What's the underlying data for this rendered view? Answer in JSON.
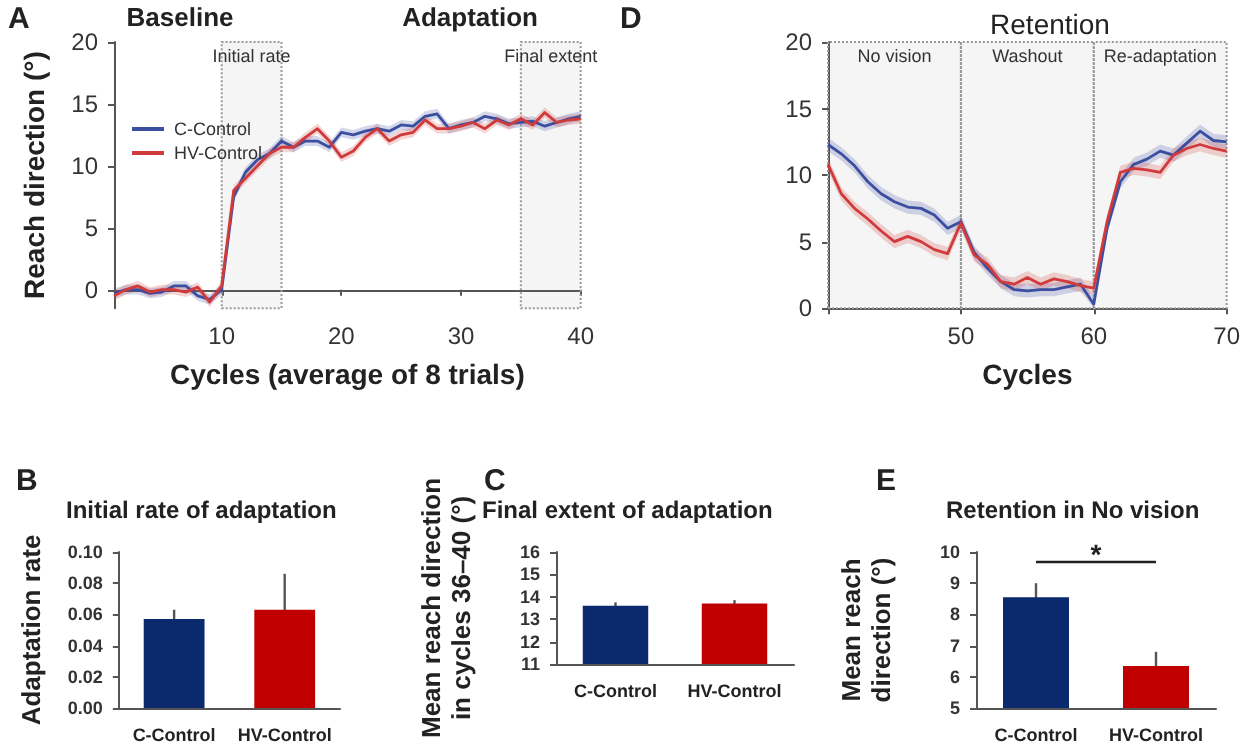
{
  "chart_data": [
    {
      "type": "line",
      "xlabel": "Cycles (average of 8 trials)",
      "ylabel": "Reach direction (°)",
      "annotations": [
        "A",
        "Baseline",
        "Adaptation"
      ],
      "x": [
        1,
        2,
        3,
        4,
        5,
        6,
        7,
        8,
        9,
        10,
        11,
        12,
        13,
        14,
        15,
        16,
        17,
        18,
        19,
        20,
        21,
        22,
        23,
        24,
        25,
        26,
        27,
        28,
        29,
        30,
        31,
        32,
        33,
        34,
        35,
        36,
        37,
        38,
        39,
        40
      ],
      "xlim": [
        1,
        40
      ],
      "xticks": [
        {
          "value": 1,
          "label": null
        },
        10,
        20,
        30,
        40
      ],
      "ylim": [
        -1.5,
        20
      ],
      "yticks": [
        0,
        5,
        10,
        15,
        20
      ],
      "legend": "left",
      "bands": [
        {
          "axis": "x",
          "from": 10,
          "to": 15,
          "label": "Initial rate"
        },
        {
          "axis": "x",
          "from": 35,
          "to": 40,
          "label": "Final extent"
        }
      ],
      "series": [
        {
          "name": "C-Control",
          "color": "#3b4ea0",
          "values": [
            -0.3,
            0,
            0,
            -0.3,
            -0.2,
            0.3,
            0.3,
            -0.5,
            -0.8,
            0,
            7.5,
            9.5,
            10.5,
            11,
            12,
            11.5,
            12,
            12,
            11.5,
            12.7,
            12.5,
            12.8,
            13,
            12.8,
            13.3,
            13.2,
            14,
            14.2,
            13,
            13.3,
            13.5,
            14,
            13.8,
            13.4,
            13.5,
            13.6,
            13.2,
            13.5,
            13.8,
            14
          ],
          "lower": [
            -0.7,
            -0.4,
            -0.4,
            -0.7,
            -0.6,
            -0.1,
            -0.1,
            -0.9,
            -1.2,
            -0.4,
            7.1,
            9.1,
            10.1,
            10.6,
            11.6,
            11.1,
            11.6,
            11.6,
            11.1,
            12.3,
            12.1,
            12.4,
            12.6,
            12.4,
            12.9,
            12.8,
            13.6,
            13.8,
            12.6,
            12.9,
            13.1,
            13.6,
            13.4,
            13,
            13.1,
            13.2,
            12.8,
            13.1,
            13.4,
            13.6
          ],
          "upper": [
            0.1,
            0.4,
            0.4,
            0.1,
            0.2,
            0.7,
            0.7,
            -0.1,
            -0.4,
            0.4,
            7.9,
            9.9,
            10.9,
            11.4,
            12.4,
            11.9,
            12.4,
            12.4,
            11.9,
            13.1,
            12.9,
            13.2,
            13.4,
            13.2,
            13.7,
            13.6,
            14.4,
            14.6,
            13.4,
            13.7,
            13.9,
            14.4,
            14.2,
            13.8,
            13.9,
            14,
            13.6,
            13.9,
            14.2,
            14.4
          ]
        },
        {
          "name": "HV-Control",
          "color": "#d03a3a",
          "values": [
            -0.5,
            0,
            0.3,
            -0.2,
            0,
            0,
            -0.2,
            0.2,
            -1,
            0.3,
            8,
            9,
            10,
            11,
            11.5,
            11.5,
            12.3,
            13,
            12,
            10.7,
            11.2,
            12.3,
            13,
            12,
            12.5,
            12.7,
            13.7,
            13,
            13,
            13.2,
            13.5,
            13,
            13.7,
            13.3,
            13.8,
            13.3,
            14.3,
            13.5,
            13.7,
            13.8
          ],
          "lower": [
            -0.9,
            -0.4,
            -0.1,
            -0.6,
            -0.4,
            -0.4,
            -0.6,
            -0.2,
            -1.4,
            -0.1,
            7.6,
            8.6,
            9.6,
            10.6,
            11.1,
            11.1,
            11.9,
            12.6,
            11.6,
            10.3,
            10.8,
            11.9,
            12.6,
            11.6,
            12.1,
            12.3,
            13.3,
            12.6,
            12.6,
            12.8,
            13.1,
            12.6,
            13.3,
            12.9,
            13.4,
            12.9,
            13.9,
            13.1,
            13.3,
            13.4
          ],
          "upper": [
            -0.1,
            0.4,
            0.7,
            0.2,
            0.4,
            0.4,
            0.2,
            0.6,
            -0.6,
            0.7,
            8.4,
            9.4,
            10.4,
            11.4,
            11.9,
            11.9,
            12.7,
            13.4,
            12.4,
            11.1,
            11.6,
            12.7,
            13.4,
            12.4,
            12.9,
            13.1,
            14.1,
            13.4,
            13.4,
            13.6,
            13.9,
            13.4,
            14.1,
            13.7,
            14.2,
            13.7,
            14.7,
            13.9,
            14.1,
            14.2
          ]
        }
      ]
    },
    {
      "type": "line",
      "title": "Retention",
      "xlabel": "Cycles",
      "annotations": [
        "D"
      ],
      "x": [
        40,
        41,
        42,
        43,
        44,
        45,
        46,
        47,
        48,
        49,
        50,
        51,
        52,
        53,
        54,
        55,
        56,
        57,
        58,
        59,
        60,
        61,
        62,
        63,
        64,
        65,
        66,
        67,
        68,
        69,
        70
      ],
      "xlim": [
        40,
        70
      ],
      "xticks": [
        {
          "value": 40,
          "label": null
        },
        50,
        60,
        70
      ],
      "ylim": [
        0,
        20
      ],
      "yticks": [
        0,
        5,
        10,
        15,
        20
      ],
      "bands": [
        {
          "axis": "x",
          "from": 40,
          "to": 50,
          "label": "No vision"
        },
        {
          "axis": "x",
          "from": 50,
          "to": 60,
          "label": "Washout"
        },
        {
          "axis": "x",
          "from": 60,
          "to": 70,
          "label": "Re-adaptation"
        }
      ],
      "series": [
        {
          "color": "#3b4ea0",
          "values": [
            12.3,
            11.6,
            10.7,
            9.5,
            8.6,
            8.0,
            7.6,
            7.5,
            7.0,
            6.0,
            6.5,
            4.2,
            3.0,
            2.0,
            1.4,
            1.3,
            1.4,
            1.4,
            1.6,
            1.8,
            0.3,
            6,
            9.5,
            10.8,
            11.2,
            11.8,
            11.5,
            12.4,
            13.3,
            12.6,
            12.5
          ],
          "lower": [
            11.8,
            11.1,
            10.2,
            9,
            8.1,
            7.5,
            7.1,
            7,
            6.5,
            5.5,
            6,
            3.7,
            2.5,
            1.5,
            0.9,
            0.8,
            0.9,
            0.9,
            1.1,
            1.3,
            0,
            5.5,
            9,
            10.3,
            10.7,
            11.3,
            11,
            11.9,
            12.8,
            12.1,
            12
          ],
          "upper": [
            12.8,
            12.1,
            11.2,
            10,
            9.1,
            8.5,
            8.1,
            8,
            7.5,
            6.5,
            7,
            4.7,
            3.5,
            2.5,
            1.9,
            1.8,
            1.9,
            1.9,
            2.1,
            2.3,
            0.8,
            6.5,
            10,
            11.3,
            11.7,
            12.3,
            12,
            12.9,
            13.8,
            13.1,
            13
          ]
        },
        {
          "color": "#d03a3a",
          "values": [
            10.8,
            8.6,
            7.5,
            6.7,
            5.8,
            5.0,
            5.4,
            5.0,
            4.4,
            4.1,
            6.4,
            4.0,
            3.3,
            2.0,
            1.8,
            2.3,
            1.8,
            2.2,
            2.0,
            1.7,
            1.5,
            6.5,
            10.2,
            10.5,
            10.4,
            10.2,
            11.5,
            12,
            12.3,
            12,
            11.8
          ],
          "lower": [
            10.3,
            8.1,
            7,
            6.2,
            5.3,
            4.5,
            4.9,
            4.5,
            3.9,
            3.6,
            5.9,
            3.5,
            2.8,
            1.5,
            1.3,
            1.8,
            1.3,
            1.7,
            1.5,
            1.2,
            1,
            6,
            9.7,
            10,
            9.9,
            9.7,
            11,
            11.5,
            11.8,
            11.5,
            11.3
          ],
          "upper": [
            11.3,
            9.1,
            8,
            7.2,
            6.3,
            5.5,
            5.9,
            5.5,
            4.9,
            4.6,
            6.9,
            4.5,
            3.8,
            2.5,
            2.3,
            2.8,
            2.3,
            2.7,
            2.5,
            2.2,
            2,
            7,
            10.7,
            11,
            10.9,
            10.7,
            12,
            12.5,
            12.8,
            12.5,
            12.3
          ]
        }
      ]
    },
    {
      "type": "bar",
      "title": "Initial rate of adaptation",
      "ylabel": "Adaptation rate",
      "annotations": [
        "B"
      ],
      "categories": [
        "C-Control",
        "HV-Control"
      ],
      "values": [
        0.057,
        0.063
      ],
      "errors": [
        0.006,
        0.023
      ],
      "colors": [
        "#0b2a6e",
        "#c00000"
      ],
      "ylim": [
        0,
        0.1
      ],
      "yticks": [
        {
          "value": 0,
          "label": "0.00"
        },
        {
          "value": 0.02,
          "label": "0.02"
        },
        {
          "value": 0.04,
          "label": "0.04"
        },
        {
          "value": 0.06,
          "label": "0.06"
        },
        {
          "value": 0.08,
          "label": "0.08"
        },
        {
          "value": 0.1,
          "label": "0.10"
        }
      ]
    },
    {
      "type": "bar",
      "title": "Final extent of adaptation",
      "ylabel": "Mean reach direction in cycles 36–40 (°)",
      "annotations": [
        "C"
      ],
      "categories": [
        "C-Control",
        "HV-Control"
      ],
      "values": [
        13.6,
        13.7
      ],
      "errors": [
        0.15,
        0.15
      ],
      "colors": [
        "#0b2a6e",
        "#c00000"
      ],
      "ylim": [
        11,
        16
      ],
      "yticks": [
        11,
        12,
        13,
        14,
        15,
        16
      ]
    },
    {
      "type": "bar",
      "title": "Retention in No vision",
      "ylabel": "Mean reach direction (°)",
      "annotations": [
        "E",
        "*"
      ],
      "categories": [
        "C-Control",
        "HV-Control"
      ],
      "values": [
        8.55,
        6.35
      ],
      "errors": [
        0.45,
        0.45
      ],
      "colors": [
        "#0b2a6e",
        "#c00000"
      ],
      "ylim": [
        5,
        10
      ],
      "yticks": [
        5,
        6,
        7,
        8,
        9,
        10
      ]
    }
  ]
}
